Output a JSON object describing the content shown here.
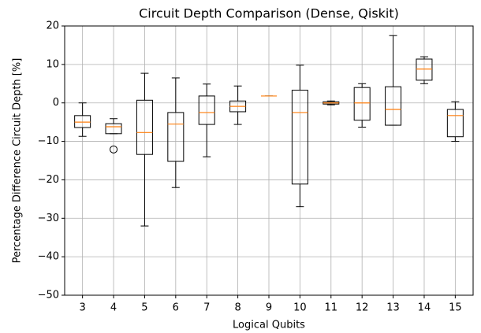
{
  "chart_data": {
    "type": "box",
    "title": "Circuit Depth Comparison (Dense, Qiskit)",
    "xlabel": "Logical Qubits",
    "ylabel": "Percentage Difference Circuit Depth  [%]",
    "categories": [
      "3",
      "4",
      "5",
      "6",
      "7",
      "8",
      "9",
      "10",
      "11",
      "12",
      "13",
      "14",
      "15"
    ],
    "boxes": [
      {
        "low": -8.7,
        "q1": -6.4,
        "median": -5,
        "q3": -3.3,
        "high": 0
      },
      {
        "low": -8,
        "q1": -8,
        "median": -6.2,
        "q3": -5.4,
        "high": -4.1,
        "outliers": [
          -12.1
        ]
      },
      {
        "low": -32,
        "q1": -13.4,
        "median": -7.7,
        "q3": 0.7,
        "high": 7.7
      },
      {
        "low": -22,
        "q1": -15.2,
        "median": -5.5,
        "q3": -2.5,
        "high": 6.5
      },
      {
        "low": -14,
        "q1": -5.6,
        "median": -2.5,
        "q3": 1.8,
        "high": 4.9
      },
      {
        "low": -5.6,
        "q1": -2.3,
        "median": -0.9,
        "q3": 0.5,
        "high": 4.4
      },
      {
        "low": 1.8,
        "q1": 1.8,
        "median": 1.8,
        "q3": 1.8,
        "high": 1.8
      },
      {
        "low": -27,
        "q1": -21.1,
        "median": -2.5,
        "q3": 3.3,
        "high": 9.8
      },
      {
        "low": -0.5,
        "q1": -0.3,
        "median": 0,
        "q3": 0.3,
        "high": 0.5
      },
      {
        "low": -6.3,
        "q1": -4.5,
        "median": 0,
        "q3": 4,
        "high": 5
      },
      {
        "low": -5.8,
        "q1": -5.8,
        "median": -1.7,
        "q3": 4.2,
        "high": 17.5
      },
      {
        "low": 5,
        "q1": 5.9,
        "median": 8.8,
        "q3": 11.4,
        "high": 12
      },
      {
        "low": -10,
        "q1": -8.8,
        "median": -3.3,
        "q3": -1.7,
        "high": 0.3
      }
    ],
    "box_color": "#000000",
    "median_color": "#ff7f0e",
    "ylim": [
      -50,
      20
    ],
    "yticks": [
      {
        "value": -50,
        "label": "−50"
      },
      {
        "value": -40,
        "label": "−40"
      },
      {
        "value": -30,
        "label": "−30"
      },
      {
        "value": -20,
        "label": "−20"
      },
      {
        "value": -10,
        "label": "−10"
      },
      0,
      10,
      20
    ],
    "grid": true
  }
}
